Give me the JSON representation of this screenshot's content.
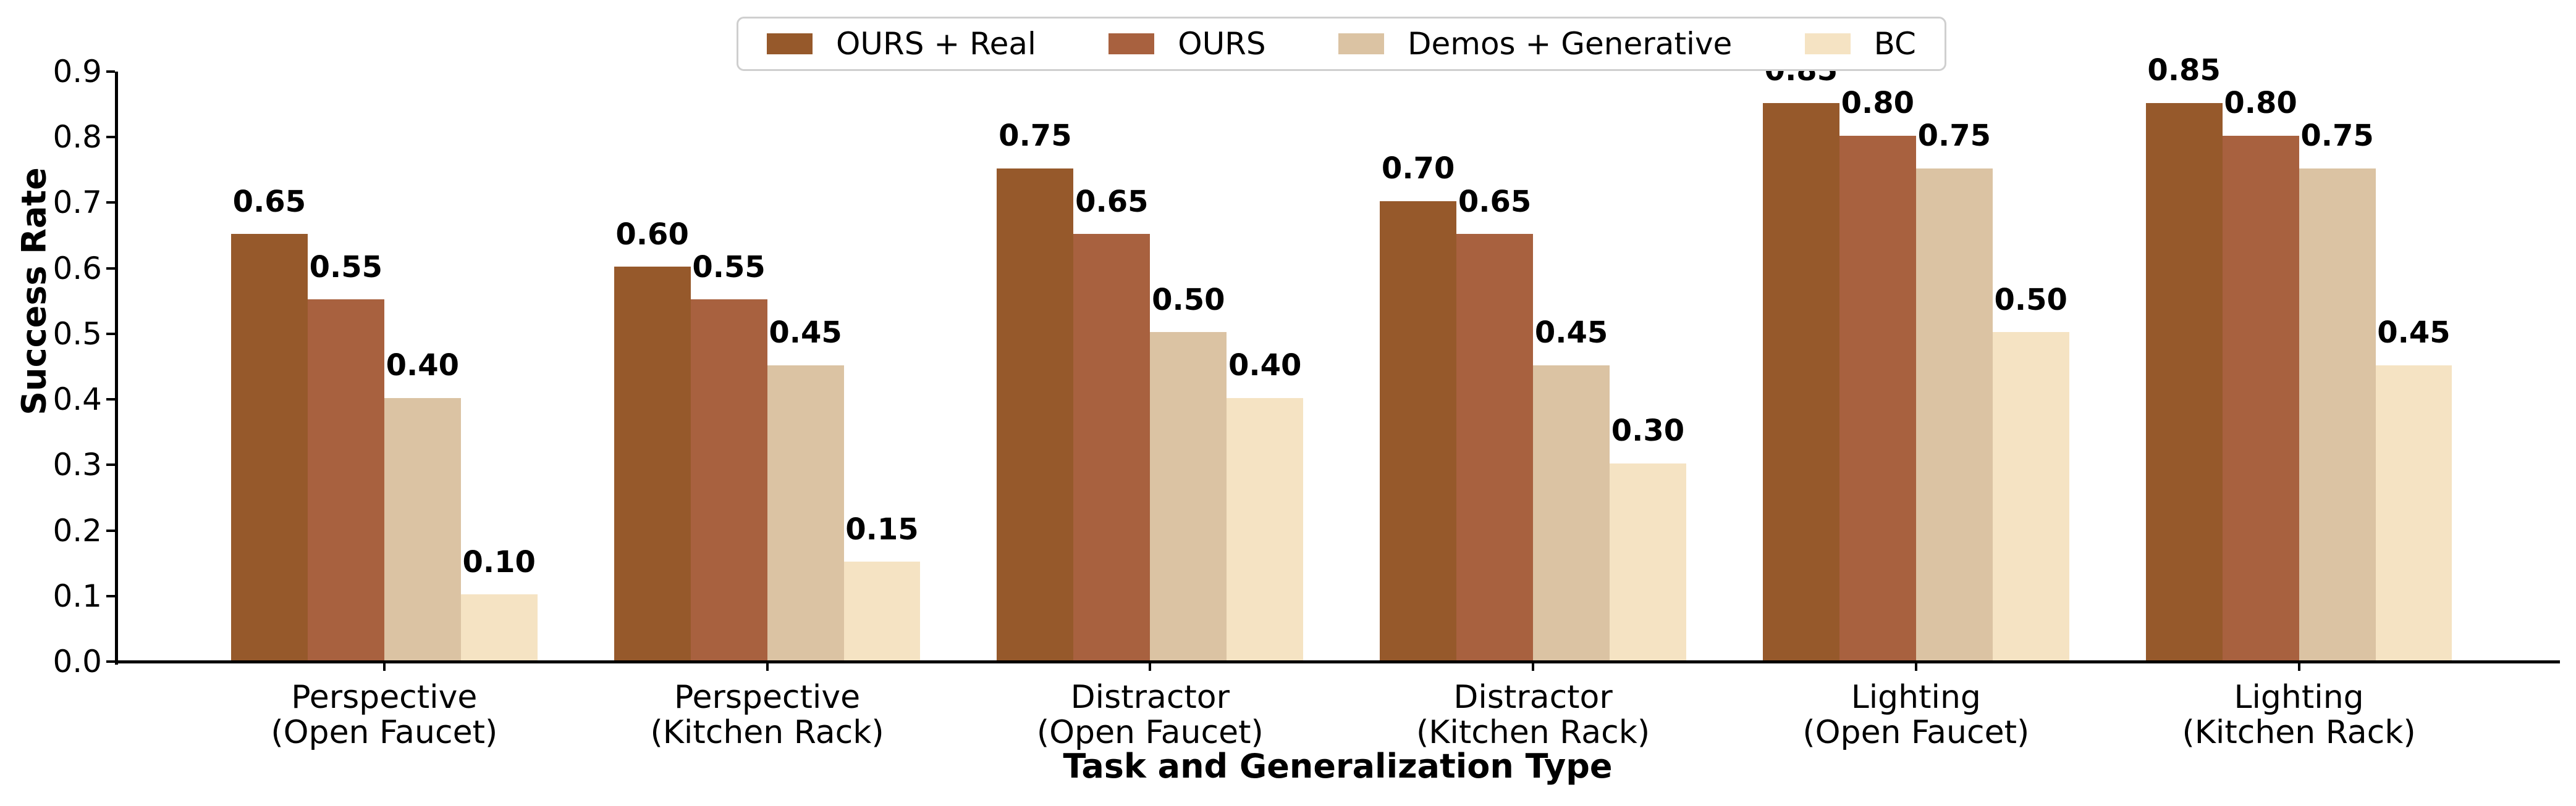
{
  "chart_data": {
    "type": "bar",
    "title": "",
    "xlabel": "Task and Generalization Type",
    "ylabel": "Success Rate",
    "categories": [
      "Perspective\n(Open Faucet)",
      "Perspective\n(Kitchen Rack)",
      "Distractor\n(Open Faucet)",
      "Distractor\n(Kitchen Rack)",
      "Lighting\n(Open Faucet)",
      "Lighting\n(Kitchen Rack)"
    ],
    "series": [
      {
        "name": "OURS + Real",
        "color": "#96592B",
        "values": [
          0.65,
          0.6,
          0.75,
          0.7,
          0.85,
          0.85
        ]
      },
      {
        "name": "OURS",
        "color": "#A8613F",
        "values": [
          0.55,
          0.55,
          0.65,
          0.65,
          0.8,
          0.8
        ]
      },
      {
        "name": "Demos + Generative",
        "color": "#DBC3A3",
        "values": [
          0.4,
          0.45,
          0.5,
          0.45,
          0.75,
          0.75
        ]
      },
      {
        "name": "BC",
        "color": "#F5E3C3",
        "values": [
          0.1,
          0.15,
          0.4,
          0.3,
          0.5,
          0.45
        ]
      }
    ],
    "layout": {
      "ylim": [
        0,
        0.9
      ],
      "yticks": [
        0.0,
        0.1,
        0.2,
        0.3,
        0.4,
        0.5,
        0.6,
        0.7,
        0.8,
        0.9
      ],
      "ytick_decimals": 1,
      "xlim": [
        -0.7,
        5.68
      ],
      "bar_width_units": 0.2,
      "grid": false,
      "legend_position": "top-center",
      "value_labels": true,
      "value_label_decimals": 2,
      "axis_color": "#000000",
      "text_color": "#000000",
      "legend_border_color": "#cfcfcf"
    }
  }
}
